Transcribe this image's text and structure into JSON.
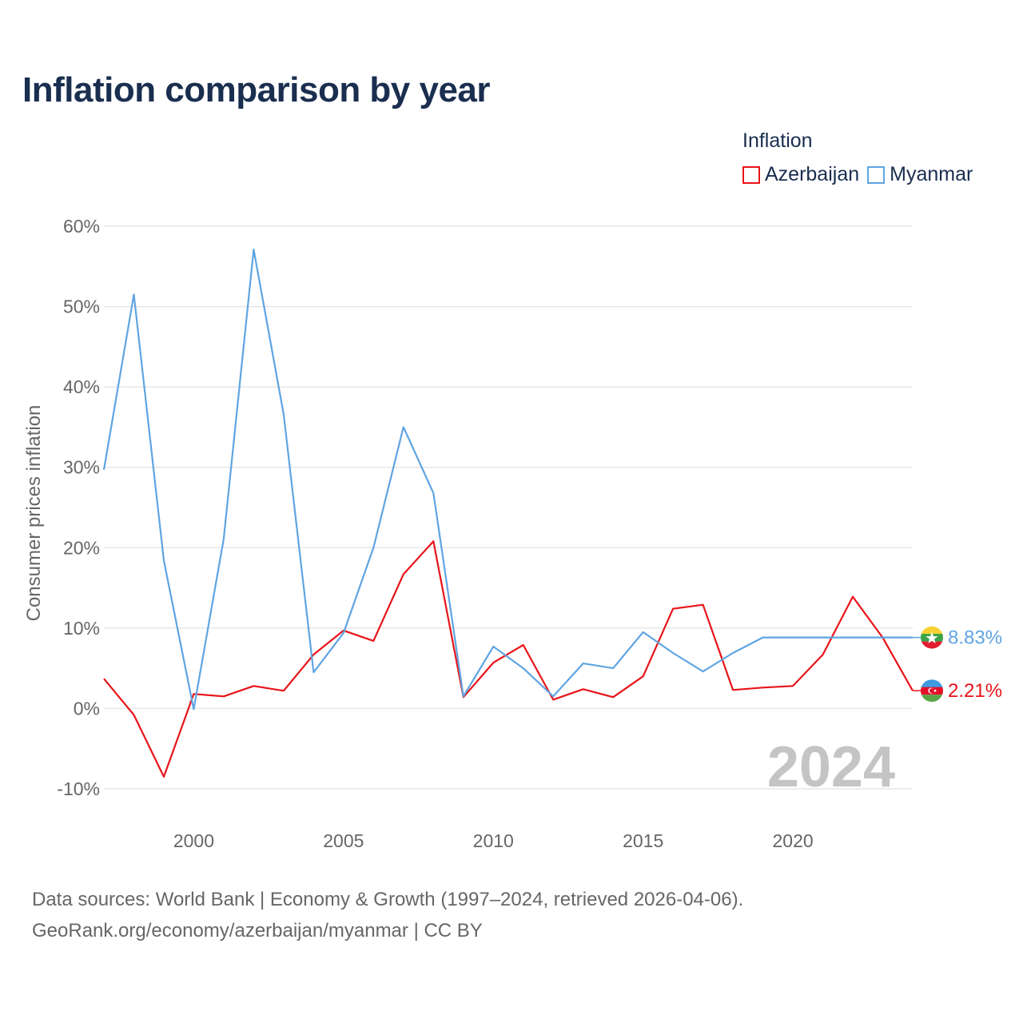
{
  "title": "Inflation comparison by year",
  "legend": {
    "title": "Inflation",
    "items": [
      {
        "label": "Azerbaijan",
        "color": "#e8141a"
      },
      {
        "label": "Myanmar",
        "color": "#5fa4e2"
      }
    ]
  },
  "footer": {
    "line1": "Data sources: World Bank | Economy & Growth (1997–2024, retrieved 2026-04-06).",
    "line2": "GeoRank.org/economy/azerbaijan/myanmar | CC BY"
  },
  "chart_data": {
    "type": "line",
    "title": "Inflation comparison by year",
    "xlabel": "",
    "ylabel": "Consumer prices inflation",
    "xlim": [
      1997,
      2024
    ],
    "ylim": [
      -10,
      60
    ],
    "yticks": [
      -10,
      0,
      10,
      20,
      30,
      40,
      50,
      60
    ],
    "ytick_labels": [
      "-10%",
      "0%",
      "10%",
      "20%",
      "30%",
      "40%",
      "50%",
      "60%"
    ],
    "xticks": [
      2000,
      2005,
      2010,
      2015,
      2020
    ],
    "xtick_labels": [
      "2000",
      "2005",
      "2010",
      "2015",
      "2020"
    ],
    "current_year_label": "2024",
    "x": [
      1997,
      1998,
      1999,
      2000,
      2001,
      2002,
      2003,
      2004,
      2005,
      2006,
      2007,
      2008,
      2009,
      2010,
      2011,
      2012,
      2013,
      2014,
      2015,
      2016,
      2017,
      2018,
      2019,
      2020,
      2021,
      2022,
      2023,
      2024
    ],
    "series": [
      {
        "name": "Azerbaijan",
        "color": "#e8141a",
        "end_label": "2.21%",
        "flag": "azerbaijan-flag-icon",
        "values": [
          3.7,
          -0.8,
          -8.5,
          1.8,
          1.5,
          2.8,
          2.2,
          6.7,
          9.7,
          8.4,
          16.7,
          20.8,
          1.4,
          5.7,
          7.9,
          1.1,
          2.4,
          1.4,
          4.0,
          12.4,
          12.9,
          2.3,
          2.6,
          2.8,
          6.7,
          13.9,
          8.8,
          2.21
        ]
      },
      {
        "name": "Myanmar",
        "color": "#5fa4e2",
        "end_label": "8.83%",
        "flag": "myanmar-flag-icon",
        "values": [
          29.7,
          51.5,
          18.4,
          -0.1,
          21.1,
          57.1,
          36.6,
          4.5,
          9.4,
          20.0,
          35.0,
          26.8,
          1.5,
          7.7,
          5.0,
          1.5,
          5.6,
          5.0,
          9.5,
          6.9,
          4.6,
          6.9,
          8.83,
          8.83,
          8.83,
          8.83,
          8.83,
          8.83
        ]
      }
    ],
    "grid": true,
    "legend_position": "top-right"
  }
}
